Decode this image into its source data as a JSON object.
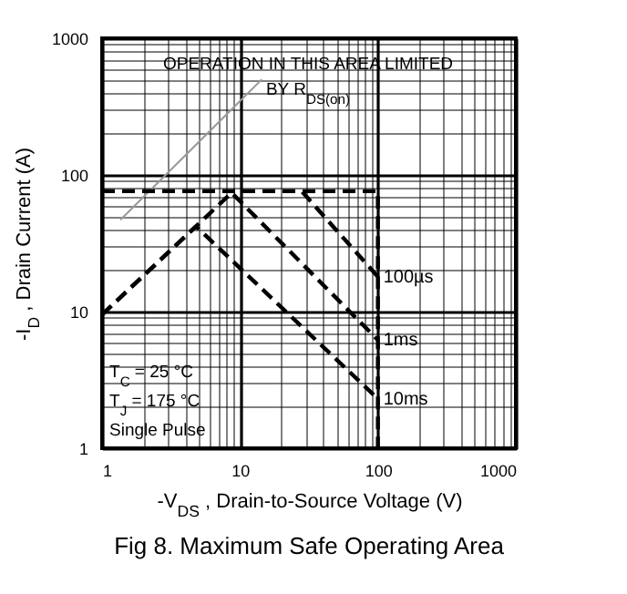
{
  "chart_data": {
    "type": "line",
    "title": "Fig 8.  Maximum Safe Operating Area",
    "xlabel": "-V$_{DS}$ , Drain-to-Source Voltage (V)",
    "ylabel": "-I$_{D}$ , Drain Current (A)",
    "log": "xy",
    "grid": true,
    "line_style": "dashed",
    "marker": "none",
    "xlim": [
      1,
      1000
    ],
    "ylim": [
      1,
      1000
    ],
    "xticks": [
      1,
      {
        "value": 2,
        "label": null
      },
      {
        "value": 3,
        "label": null
      },
      {
        "value": 4,
        "label": null
      },
      {
        "value": 5,
        "label": null
      },
      {
        "value": 6,
        "label": null
      },
      {
        "value": 7,
        "label": null
      },
      {
        "value": 8,
        "label": null
      },
      {
        "value": 9,
        "label": null
      },
      10,
      {
        "value": 20,
        "label": null
      },
      {
        "value": 30,
        "label": null
      },
      {
        "value": 40,
        "label": null
      },
      {
        "value": 50,
        "label": null
      },
      {
        "value": 60,
        "label": null
      },
      {
        "value": 70,
        "label": null
      },
      {
        "value": 80,
        "label": null
      },
      {
        "value": 90,
        "label": null
      },
      100,
      {
        "value": 200,
        "label": null
      },
      {
        "value": 300,
        "label": null
      },
      {
        "value": 400,
        "label": null
      },
      {
        "value": 500,
        "label": null
      },
      {
        "value": 600,
        "label": null
      },
      {
        "value": 700,
        "label": null
      },
      {
        "value": 800,
        "label": null
      },
      {
        "value": 900,
        "label": null
      },
      1000
    ],
    "yticks": [
      1,
      {
        "value": 2,
        "label": null
      },
      {
        "value": 3,
        "label": null
      },
      {
        "value": 4,
        "label": null
      },
      {
        "value": 5,
        "label": null
      },
      {
        "value": 6,
        "label": null
      },
      {
        "value": 7,
        "label": null
      },
      {
        "value": 8,
        "label": null
      },
      {
        "value": 9,
        "label": null
      },
      10,
      {
        "value": 20,
        "label": null
      },
      {
        "value": 30,
        "label": null
      },
      {
        "value": 40,
        "label": null
      },
      {
        "value": 50,
        "label": null
      },
      {
        "value": 60,
        "label": null
      },
      {
        "value": 70,
        "label": null
      },
      {
        "value": 80,
        "label": null
      },
      {
        "value": 90,
        "label": null
      },
      100,
      {
        "value": 200,
        "label": null
      },
      {
        "value": 300,
        "label": null
      },
      {
        "value": 400,
        "label": null
      },
      {
        "value": 500,
        "label": null
      },
      {
        "value": 600,
        "label": null
      },
      {
        "value": 700,
        "label": null
      },
      {
        "value": 800,
        "label": null
      },
      {
        "value": 900,
        "label": null
      },
      1000
    ],
    "series": [
      {
        "color": "#999999",
        "line_style": "solid",
        "x": [
          1.36,
          14.4
        ],
        "values": [
          47,
          500
        ]
      },
      {
        "color": "#000000",
        "x": [
          1,
          100,
          100
        ],
        "values": [
          76,
          76,
          1
        ]
      },
      {
        "name": "100µs",
        "color": "#000000",
        "x": [
          1,
          28,
          100
        ],
        "values": [
          76,
          76,
          18
        ]
      },
      {
        "name": "1ms",
        "color": "#000000",
        "x": [
          1,
          8.7,
          100
        ],
        "values": [
          9.5,
          74,
          6.2
        ]
      },
      {
        "name": "10ms",
        "color": "#000000",
        "x": [
          1,
          4.8,
          100
        ],
        "values": [
          9.5,
          42,
          2.3
        ]
      }
    ],
    "annotations": [
      "OPERATION IN THIS AREA LIMITED",
      "BY R$_{DS(on)}$",
      "T$_{C}$   = 25 °C",
      "T$_{J}$   = 175 °C",
      "Single Pulse"
    ]
  }
}
